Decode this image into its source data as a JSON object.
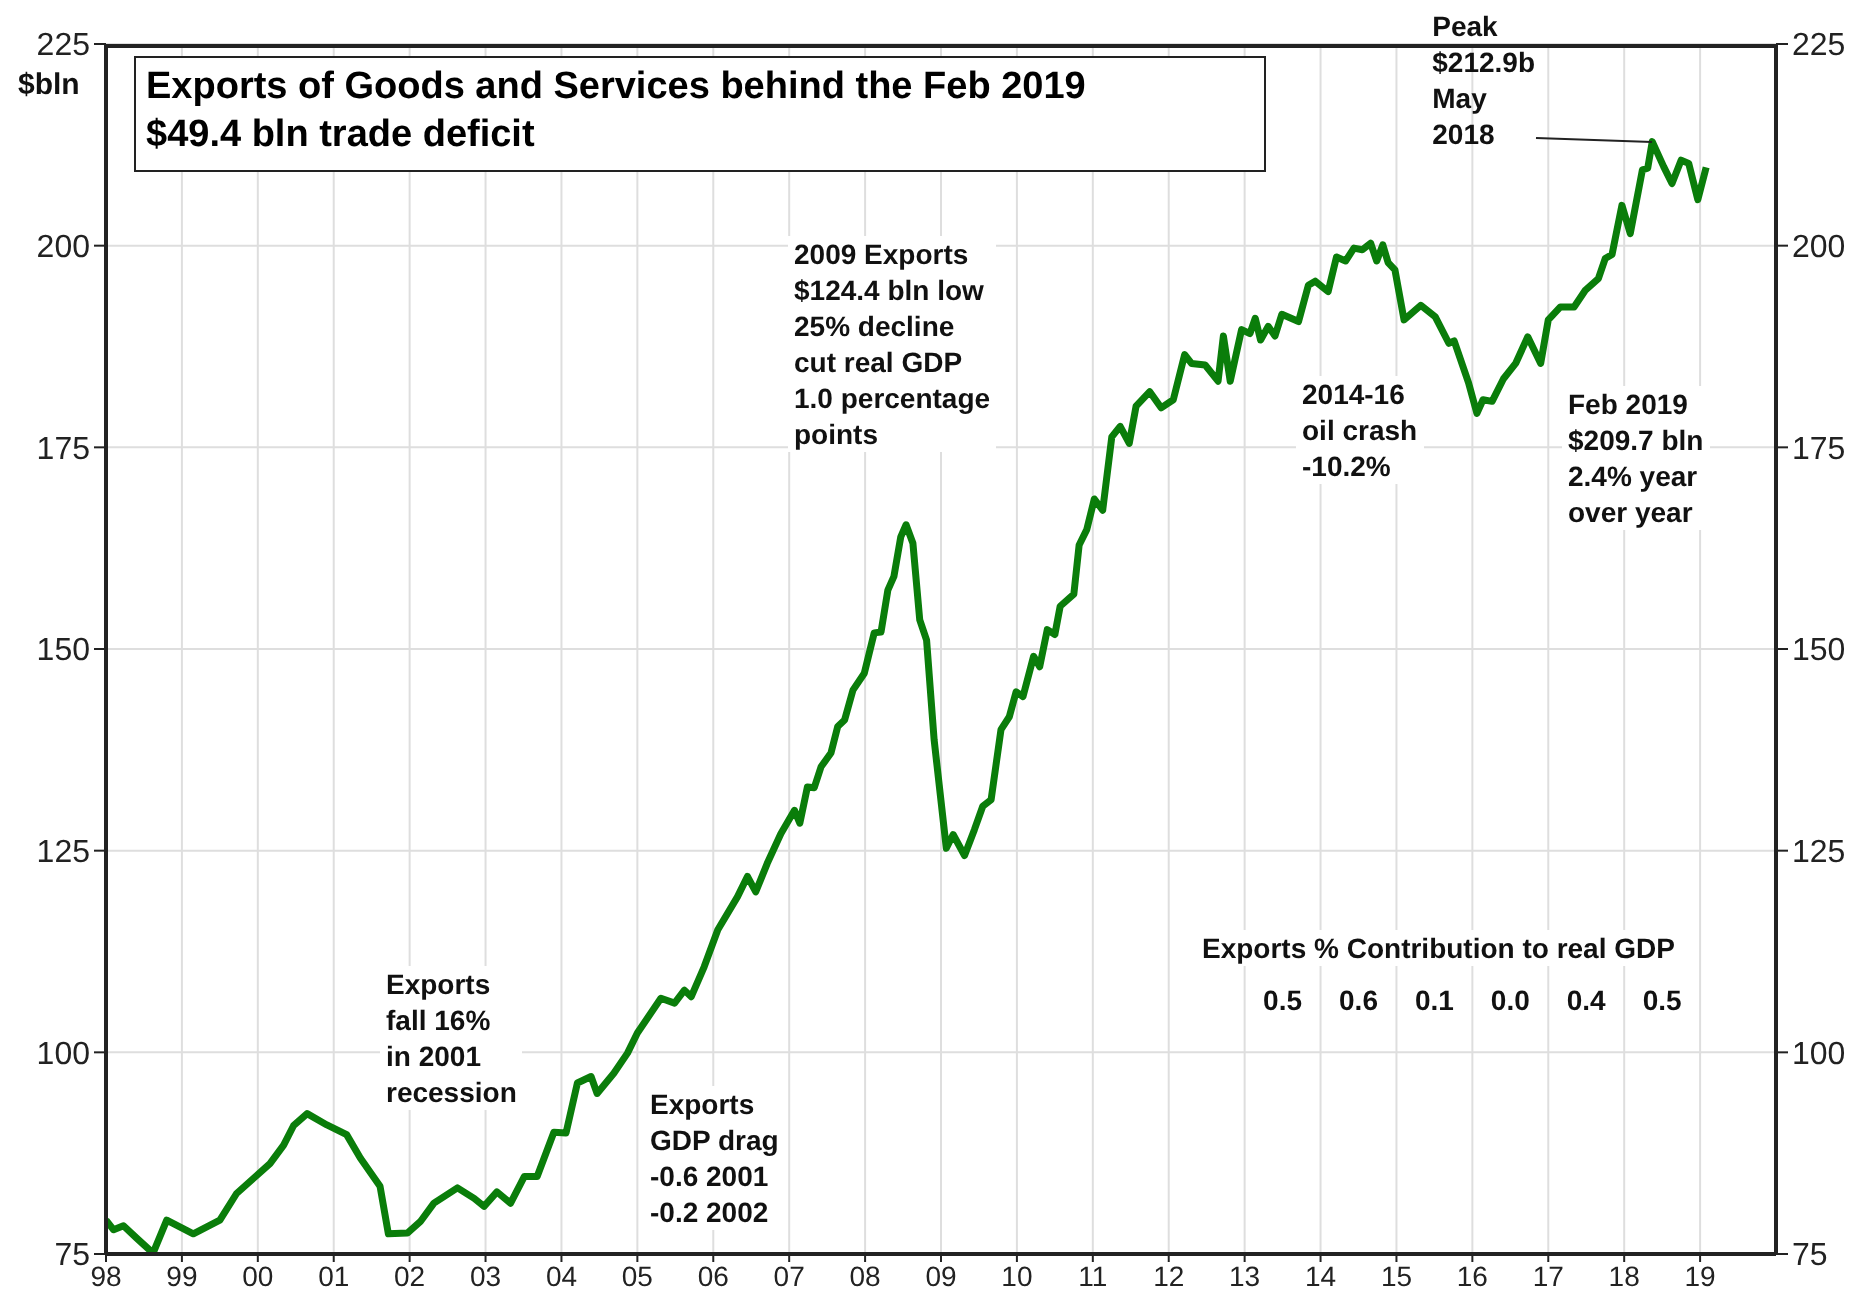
{
  "chart_data": {
    "type": "line",
    "title": "Exports of Goods and Services behind the Feb 2019\n$49.4 bln trade deficit",
    "ylabel": "$bln",
    "xlim": [
      1998,
      2020
    ],
    "xticks": [
      {
        "value": 1998,
        "label": "98"
      },
      {
        "value": 1999,
        "label": "99"
      },
      {
        "value": 2000,
        "label": "00"
      },
      {
        "value": 2001,
        "label": "01"
      },
      {
        "value": 2002,
        "label": "02"
      },
      {
        "value": 2003,
        "label": "03"
      },
      {
        "value": 2004,
        "label": "04"
      },
      {
        "value": 2005,
        "label": "05"
      },
      {
        "value": 2006,
        "label": "06"
      },
      {
        "value": 2007,
        "label": "07"
      },
      {
        "value": 2008,
        "label": "08"
      },
      {
        "value": 2009,
        "label": "09"
      },
      {
        "value": 2010,
        "label": "10"
      },
      {
        "value": 2011,
        "label": "11"
      },
      {
        "value": 2012,
        "label": "12"
      },
      {
        "value": 2013,
        "label": "13"
      },
      {
        "value": 2014,
        "label": "14"
      },
      {
        "value": 2015,
        "label": "15"
      },
      {
        "value": 2016,
        "label": "16"
      },
      {
        "value": 2017,
        "label": "17"
      },
      {
        "value": 2018,
        "label": "18"
      },
      {
        "value": 2019,
        "label": "19"
      }
    ],
    "ylim": [
      75,
      225
    ],
    "yticks": [
      75,
      100,
      125,
      150,
      175,
      200,
      225
    ],
    "y2lim": [
      75,
      225
    ],
    "y2ticks": [
      75,
      100,
      125,
      150,
      175,
      200,
      225
    ],
    "grid": true,
    "marker": "none",
    "line_style": "solid",
    "series": [
      {
        "color": "#0a7d0a",
        "x": [
          1998.0,
          1998.1,
          1998.23,
          1998.4,
          1998.62,
          1998.8,
          1999.15,
          1999.5,
          1999.72,
          2000.16,
          2000.34,
          2000.47,
          2000.65,
          2000.91,
          2001.17,
          2001.35,
          2001.61,
          2001.72,
          2001.97,
          2002.14,
          2002.32,
          2002.63,
          2002.85,
          2002.98,
          2003.15,
          2003.33,
          2003.51,
          2003.68,
          2003.9,
          2004.06,
          2004.21,
          2004.39,
          2004.47,
          2004.69,
          2004.87,
          2005.0,
          2005.31,
          2005.49,
          2005.62,
          2005.71,
          2005.88,
          2006.06,
          2006.32,
          2006.45,
          2006.56,
          2006.71,
          2006.89,
          2007.07,
          2007.14,
          2007.24,
          2007.33,
          2007.42,
          2007.55,
          2007.64,
          2007.73,
          2007.84,
          2007.99,
          2008.12,
          2008.21,
          2008.3,
          2008.38,
          2008.47,
          2008.54,
          2008.63,
          2008.72,
          2008.81,
          2008.91,
          2009.07,
          2009.16,
          2009.31,
          2009.44,
          2009.55,
          2009.66,
          2009.79,
          2009.9,
          2009.99,
          2010.08,
          2010.22,
          2010.3,
          2010.4,
          2010.5,
          2010.57,
          2010.75,
          2010.82,
          2010.92,
          2011.02,
          2011.13,
          2011.25,
          2011.36,
          2011.48,
          2011.57,
          2011.75,
          2011.9,
          2012.06,
          2012.21,
          2012.3,
          2012.48,
          2012.65,
          2012.72,
          2012.81,
          2012.96,
          2013.07,
          2013.14,
          2013.21,
          2013.31,
          2013.4,
          2013.49,
          2013.71,
          2013.84,
          2013.93,
          2014.1,
          2014.21,
          2014.33,
          2014.44,
          2014.55,
          2014.66,
          2014.74,
          2014.82,
          2014.89,
          2014.98,
          2015.1,
          2015.32,
          2015.51,
          2015.69,
          2015.76,
          2015.95,
          2016.06,
          2016.14,
          2016.26,
          2016.41,
          2016.57,
          2016.73,
          2016.9,
          2017.0,
          2017.16,
          2017.34,
          2017.49,
          2017.66,
          2017.75,
          2017.84,
          2017.97,
          2018.08,
          2018.24,
          2018.31,
          2018.37,
          2018.52,
          2018.63,
          2018.75,
          2018.85,
          2018.97,
          2019.08
        ],
        "values": [
          79.2,
          78.0,
          78.5,
          77.0,
          75.1,
          79.2,
          77.5,
          79.2,
          82.5,
          86.2,
          88.5,
          90.9,
          92.4,
          91.0,
          89.8,
          86.9,
          83.4,
          77.5,
          77.6,
          79.0,
          81.3,
          83.2,
          81.9,
          80.9,
          82.7,
          81.3,
          84.6,
          84.6,
          90.1,
          90.0,
          96.2,
          97.0,
          94.9,
          97.4,
          99.9,
          102.4,
          106.7,
          106.1,
          107.7,
          106.9,
          110.6,
          115.2,
          119.3,
          121.8,
          119.9,
          123.4,
          127.1,
          130.0,
          128.4,
          132.9,
          132.8,
          135.4,
          137.1,
          140.4,
          141.2,
          144.9,
          147.0,
          152.0,
          152.1,
          157.3,
          159.0,
          163.9,
          165.4,
          163.1,
          153.6,
          151.1,
          138.7,
          125.3,
          127.0,
          124.4,
          127.6,
          130.5,
          131.3,
          140.0,
          141.6,
          144.7,
          144.1,
          149.1,
          147.8,
          152.4,
          151.8,
          155.3,
          156.8,
          162.9,
          164.8,
          168.6,
          167.2,
          176.3,
          177.6,
          175.5,
          180.1,
          181.9,
          179.9,
          180.9,
          186.5,
          185.4,
          185.2,
          183.2,
          188.8,
          183.2,
          189.6,
          189.1,
          191.0,
          188.3,
          190.0,
          188.8,
          191.5,
          190.6,
          195.1,
          195.6,
          194.3,
          198.6,
          198.1,
          199.7,
          199.5,
          200.3,
          198.1,
          200.1,
          197.9,
          197.0,
          190.8,
          192.6,
          191.2,
          187.9,
          188.2,
          183.0,
          179.2,
          180.9,
          180.7,
          183.5,
          185.4,
          188.7,
          185.4,
          190.8,
          192.4,
          192.4,
          194.5,
          195.9,
          198.4,
          198.9,
          205.0,
          201.5,
          209.4,
          209.6,
          212.9,
          209.8,
          207.7,
          210.6,
          210.2,
          205.7,
          209.7
        ]
      }
    ],
    "annotations": [
      "Exports\nfall 16%\nin 2001\nrecession",
      "Exports\nGDP drag\n-0.6 2001\n-0.2 2002",
      "2009 Exports\n$124.4 bln low\n25% decline\ncut real GDP\n1.0 percentage\npoints",
      "2014-16\noil crash\n-10.2%",
      "Feb 2019\n$209.7 bln\n2.4% year\nover year",
      {
        "text": "Peak\n$212.9b\nMay\n2018",
        "x": 2018.37,
        "y": 212.9
      },
      "Exports % Contribution to real GDP",
      "0.5",
      "0.6",
      "0.1",
      "0.0",
      "0.4",
      "0.5"
    ]
  }
}
